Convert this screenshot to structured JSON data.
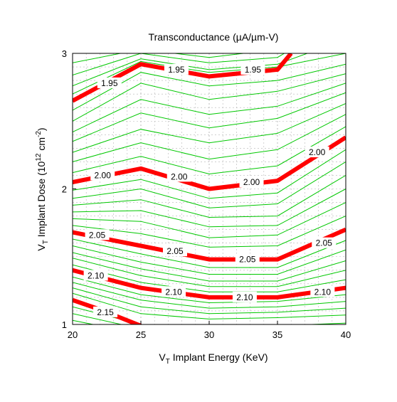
{
  "chart_data": {
    "type": "contour",
    "title": "Transconductance (µA/µm-V)",
    "xlabel": {
      "main": "V",
      "sub": "T",
      "rest": " Implant Energy (KeV)"
    },
    "ylabel": {
      "main": "V",
      "sub": "T",
      "mid": " Implant Dose (10",
      "sup1": "12",
      "mid2": " cm",
      "sup2": "-2",
      "end": ")"
    },
    "xlim": [
      20,
      40
    ],
    "ylim": [
      1,
      3
    ],
    "x_ticks": [
      20,
      25,
      30,
      35,
      40
    ],
    "x_tick_labels": [
      "20",
      "25",
      "30",
      "35",
      "40"
    ],
    "y_ticks": [
      1,
      2,
      3
    ],
    "y_tick_labels": [
      "1",
      "2",
      "3"
    ],
    "grid": true,
    "labeled_contours": [
      {
        "level": "1.95",
        "points": [
          [
            20,
            2.65
          ],
          [
            25,
            2.92
          ],
          [
            30,
            2.83
          ],
          [
            35,
            2.88
          ],
          [
            36,
            3.0
          ]
        ],
        "labels": [
          {
            "x": 22.7,
            "y": 2.78
          },
          {
            "x": 27.6,
            "y": 2.88
          },
          {
            "x": 33.2,
            "y": 2.88
          }
        ]
      },
      {
        "level": "2.00",
        "points": [
          [
            20,
            2.05
          ],
          [
            25,
            2.15
          ],
          [
            30,
            2.0
          ],
          [
            35,
            2.06
          ],
          [
            40,
            2.38
          ]
        ],
        "labels": [
          {
            "x": 22.2,
            "y": 2.1
          },
          {
            "x": 27.8,
            "y": 2.09
          },
          {
            "x": 33.1,
            "y": 2.05
          },
          {
            "x": 37.9,
            "y": 2.27
          }
        ]
      },
      {
        "level": "2.05",
        "points": [
          [
            20,
            1.68
          ],
          [
            25,
            1.58
          ],
          [
            30,
            1.48
          ],
          [
            35,
            1.48
          ],
          [
            40,
            1.7
          ]
        ],
        "labels": [
          {
            "x": 21.8,
            "y": 1.66
          },
          {
            "x": 27.5,
            "y": 1.54
          },
          {
            "x": 32.8,
            "y": 1.48
          },
          {
            "x": 38.4,
            "y": 1.6
          }
        ]
      },
      {
        "level": "2.10",
        "points": [
          [
            20,
            1.4
          ],
          [
            25,
            1.27
          ],
          [
            30,
            1.2
          ],
          [
            35,
            1.2
          ],
          [
            40,
            1.27
          ]
        ],
        "labels": [
          {
            "x": 21.7,
            "y": 1.36
          },
          {
            "x": 27.4,
            "y": 1.24
          },
          {
            "x": 32.6,
            "y": 1.2
          },
          {
            "x": 38.3,
            "y": 1.24
          }
        ]
      },
      {
        "level": "2.15",
        "points": [
          [
            20,
            1.18
          ],
          [
            22,
            1.11
          ],
          [
            25,
            0.99
          ]
        ],
        "labels": [
          {
            "x": 22.4,
            "y": 1.09
          }
        ]
      }
    ],
    "unlabeled_contours": [
      [
        [
          20,
          2.93
        ],
        [
          25,
          3.03
        ],
        [
          30,
          2.97
        ],
        [
          35,
          3.03
        ]
      ],
      [
        [
          20,
          2.84
        ],
        [
          25,
          3.0
        ],
        [
          30,
          2.93
        ],
        [
          35,
          2.97
        ],
        [
          36,
          3.03
        ]
      ],
      [
        [
          20,
          2.76
        ],
        [
          25,
          2.96
        ],
        [
          30,
          2.88
        ],
        [
          35,
          2.92
        ],
        [
          38,
          3.03
        ]
      ],
      [
        [
          20,
          2.7
        ],
        [
          25,
          2.94
        ],
        [
          30,
          2.86
        ],
        [
          35,
          2.9
        ],
        [
          40,
          3.0
        ]
      ],
      [
        [
          20,
          2.58
        ],
        [
          25,
          2.86
        ],
        [
          30,
          2.76
        ],
        [
          35,
          2.8
        ],
        [
          40,
          2.92
        ]
      ],
      [
        [
          20,
          2.5
        ],
        [
          25,
          2.78
        ],
        [
          30,
          2.66
        ],
        [
          35,
          2.72
        ],
        [
          40,
          2.85
        ]
      ],
      [
        [
          20,
          2.42
        ],
        [
          25,
          2.66
        ],
        [
          30,
          2.55
        ],
        [
          35,
          2.61
        ],
        [
          40,
          2.78
        ]
      ],
      [
        [
          20,
          2.35
        ],
        [
          25,
          2.56
        ],
        [
          30,
          2.45
        ],
        [
          35,
          2.52
        ],
        [
          40,
          2.71
        ]
      ],
      [
        [
          20,
          2.27
        ],
        [
          25,
          2.44
        ],
        [
          30,
          2.34
        ],
        [
          35,
          2.41
        ],
        [
          40,
          2.63
        ]
      ],
      [
        [
          20,
          2.2
        ],
        [
          25,
          2.34
        ],
        [
          30,
          2.22
        ],
        [
          35,
          2.29
        ],
        [
          40,
          2.55
        ]
      ],
      [
        [
          20,
          2.12
        ],
        [
          25,
          2.24
        ],
        [
          30,
          2.11
        ],
        [
          35,
          2.17
        ],
        [
          40,
          2.46
        ]
      ],
      [
        [
          20,
          1.99
        ],
        [
          25,
          2.07
        ],
        [
          30,
          1.93
        ],
        [
          35,
          1.97
        ],
        [
          40,
          2.29
        ]
      ],
      [
        [
          20,
          1.93
        ],
        [
          25,
          2.0
        ],
        [
          30,
          1.86
        ],
        [
          35,
          1.89
        ],
        [
          40,
          2.2
        ]
      ],
      [
        [
          20,
          1.88
        ],
        [
          25,
          1.92
        ],
        [
          30,
          1.79
        ],
        [
          35,
          1.8
        ],
        [
          40,
          2.1
        ]
      ],
      [
        [
          20,
          1.83
        ],
        [
          25,
          1.84
        ],
        [
          30,
          1.72
        ],
        [
          35,
          1.73
        ],
        [
          40,
          2.0
        ]
      ],
      [
        [
          20,
          1.78
        ],
        [
          25,
          1.76
        ],
        [
          30,
          1.64
        ],
        [
          35,
          1.66
        ],
        [
          40,
          1.9
        ]
      ],
      [
        [
          20,
          1.73
        ],
        [
          25,
          1.67
        ],
        [
          30,
          1.57
        ],
        [
          35,
          1.58
        ],
        [
          40,
          1.8
        ]
      ],
      [
        [
          20,
          1.63
        ],
        [
          25,
          1.52
        ],
        [
          30,
          1.42
        ],
        [
          35,
          1.42
        ],
        [
          40,
          1.62
        ]
      ],
      [
        [
          20,
          1.58
        ],
        [
          25,
          1.46
        ],
        [
          30,
          1.37
        ],
        [
          35,
          1.37
        ],
        [
          40,
          1.55
        ]
      ],
      [
        [
          20,
          1.53
        ],
        [
          25,
          1.41
        ],
        [
          30,
          1.32
        ],
        [
          35,
          1.32
        ],
        [
          40,
          1.47
        ]
      ],
      [
        [
          20,
          1.49
        ],
        [
          25,
          1.36
        ],
        [
          30,
          1.28
        ],
        [
          35,
          1.28
        ],
        [
          40,
          1.4
        ]
      ],
      [
        [
          20,
          1.44
        ],
        [
          25,
          1.31
        ],
        [
          30,
          1.24
        ],
        [
          35,
          1.24
        ],
        [
          40,
          1.33
        ]
      ],
      [
        [
          20,
          1.35
        ],
        [
          25,
          1.22
        ],
        [
          30,
          1.16
        ],
        [
          35,
          1.17
        ],
        [
          40,
          1.22
        ]
      ],
      [
        [
          20,
          1.31
        ],
        [
          25,
          1.18
        ],
        [
          30,
          1.12
        ],
        [
          35,
          1.13
        ],
        [
          40,
          1.17
        ]
      ],
      [
        [
          20,
          1.27
        ],
        [
          25,
          1.13
        ],
        [
          30,
          1.08
        ],
        [
          35,
          1.09
        ],
        [
          40,
          1.12
        ]
      ],
      [
        [
          20,
          1.23
        ],
        [
          25,
          1.08
        ],
        [
          30,
          1.04
        ],
        [
          35,
          1.05
        ],
        [
          40,
          1.07
        ]
      ],
      [
        [
          20,
          1.13
        ],
        [
          25,
          1.0
        ],
        [
          30,
          0.98
        ],
        [
          35,
          0.99
        ],
        [
          40,
          1.01
        ]
      ],
      [
        [
          20,
          1.08
        ],
        [
          24,
          0.99
        ]
      ],
      [
        [
          20,
          1.03
        ],
        [
          22,
          0.99
        ]
      ]
    ]
  },
  "colors": {
    "labeled_contour": "#ff0000",
    "unlabeled_contour": "#00c800",
    "grid": "#b4b4b4",
    "axis": "#000000"
  }
}
